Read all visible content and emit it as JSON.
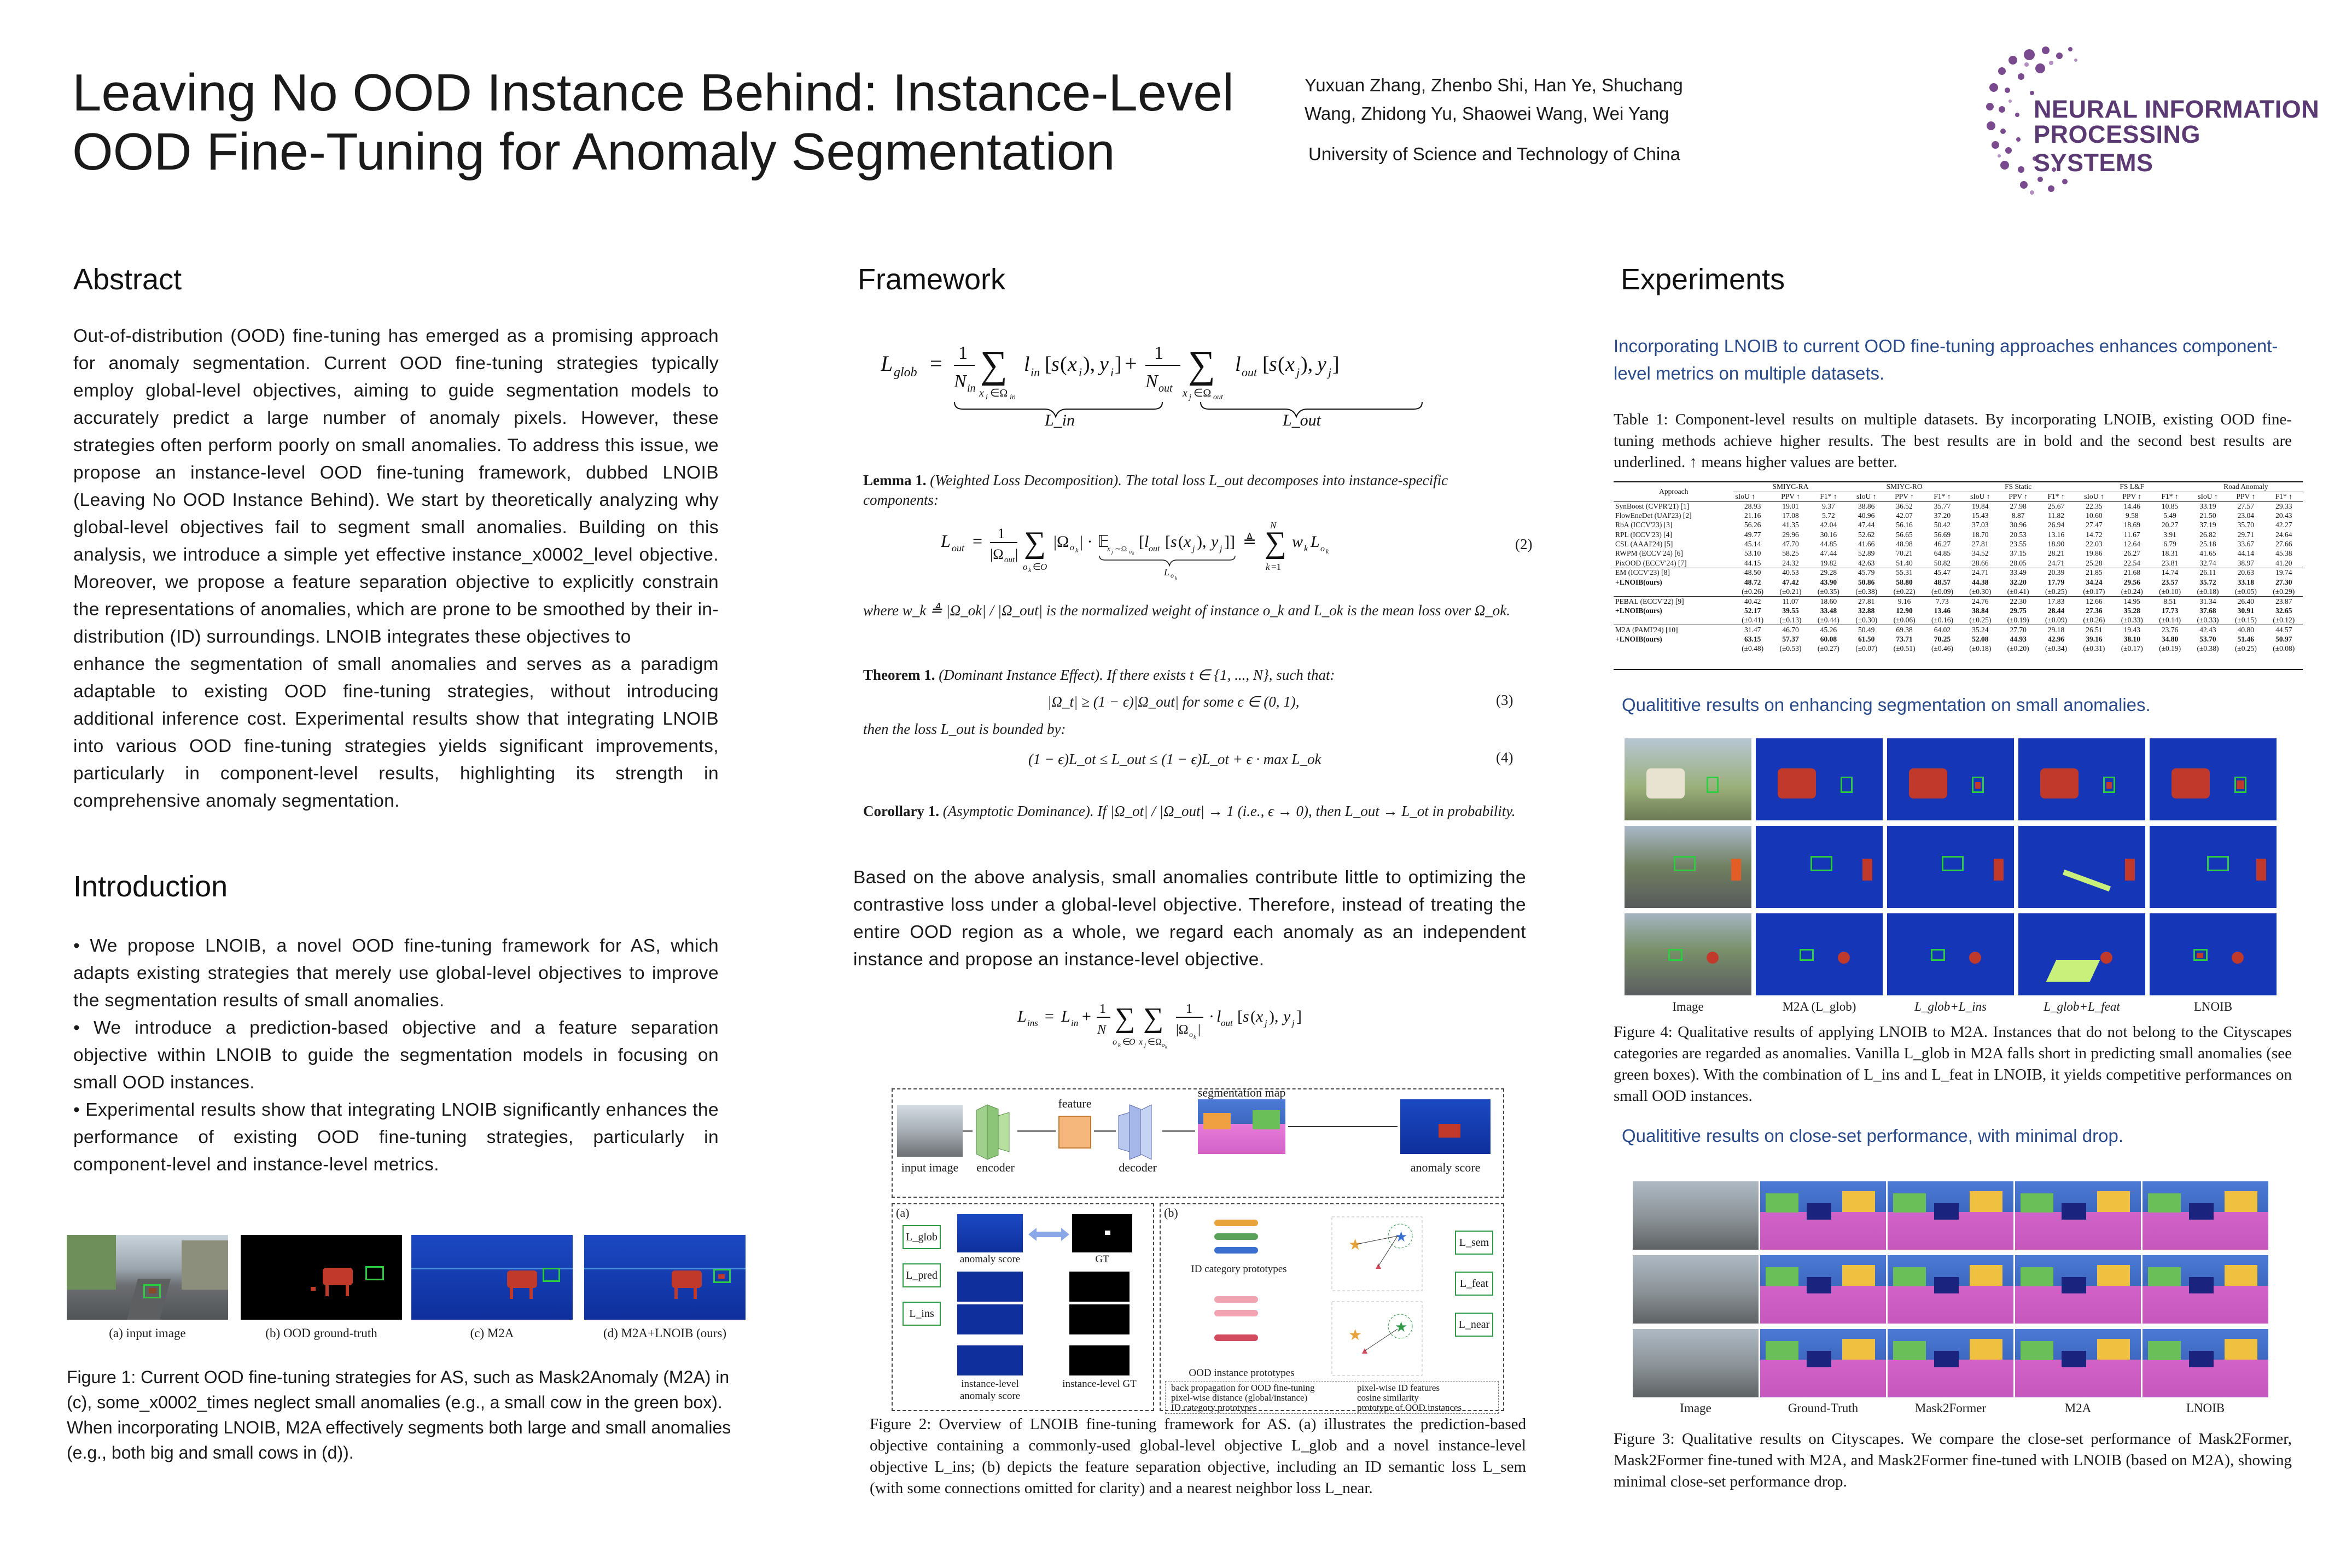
{
  "header": {
    "title_line1": "Leaving No OOD Instance Behind: Instance-Level",
    "title_line2": "OOD Fine-Tuning for Anomaly Segmentation",
    "authors_line1": "Yuxuan Zhang, Zhenbo Shi, Han Ye, Shuchang",
    "authors_line2": "Wang, Zhidong Yu, Shaowei Wang, Wei Yang",
    "affiliation": "University of Science and Technology of China",
    "logo_line1": "NEURAL INFORMATION",
    "logo_line2": "PROCESSING SYSTEMS"
  },
  "abstract": {
    "heading": "Abstract",
    "text1": "Out-of-distribution (OOD) fine-tuning has emerged as a promising approach for anomaly segmentation. Current OOD fine-tuning strategies typically employ global-level objectives, aiming to guide segmentation models to accurately predict a large number of anomaly pixels. However, these strategies often perform poorly on small anomalies. To address this issue, we propose an instance-level OOD fine-tuning framework, dubbed LNOIB (Leaving No OOD Instance Behind). We start by theoretically analyzing why global-level objectives fail to segment small anomalies. Building on this analysis, we introduce a simple yet effective instance_x0002_level objective. Moreover, we propose a feature separation objective to explicitly constrain the representations of anomalies, which are prone to be smoothed by their in-distribution (ID) surroundings. LNOIB integrates these objectives to",
    "text2": "enhance the segmentation of small anomalies and serves as a paradigm adaptable to existing OOD fine-tuning strategies, without introducing additional inference cost. Experimental results show that integrating LNOIB into various OOD fine-tuning strategies yields significant improvements, particularly in component-level results, highlighting its strength in comprehensive anomaly segmentation."
  },
  "introduction": {
    "heading": "Introduction",
    "bullets": [
      "• We propose LNOIB, a novel OOD fine-tuning framework for AS, which adapts existing strategies that merely use global-level objectives to improve the segmentation results of small anomalies.",
      "• We introduce a prediction-based objective and a feature separation objective within LNOIB to guide the segmentation models in focusing on small OOD instances.",
      "• Experimental results show that integrating LNOIB significantly enhances the performance of existing OOD fine-tuning strategies, particularly in component-level and instance-level metrics."
    ]
  },
  "figure1": {
    "subcaptions": [
      "(a) input image",
      "(b) OOD ground-truth",
      "(c) M2A",
      "(d) M2A+LNOIB (ours)"
    ],
    "caption": "Figure 1: Current OOD fine-tuning strategies for AS, such as Mask2Anomaly (M2A) in (c), some_x0002_times neglect small anomalies (e.g., a small cow in the green box). When incorporating LNOIB, M2A effectively segments both large and small anomalies (e.g., both big and small cows in (d))."
  },
  "framework": {
    "heading": "Framework",
    "eq_glob_label_in": "L_in",
    "eq_glob_label_out": "L_out",
    "lemma_head": "Lemma 1.",
    "lemma_body": "(Weighted Loss Decomposition). The total loss L_out decomposes into instance-specific components:",
    "eq2_num": "(2)",
    "lemma_where": "where w_k ≜ |Ω_ok| / |Ω_out| is the normalized weight of instance o_k and L_ok is the mean loss over Ω_ok.",
    "theorem_head": "Theorem 1.",
    "theorem_body": "(Dominant Instance Effect). If there exists t ∈ {1, ..., N}, such that:",
    "eq3": "|Ω_t| ≥ (1 − ϵ)|Ω_out|   for some ϵ ∈ (0, 1),",
    "eq3_num": "(3)",
    "theorem_then": "then the loss L_out is bounded by:",
    "eq4": "(1 − ϵ)L_ot ≤ L_out ≤ (1 − ϵ)L_ot + ϵ · max L_ok",
    "eq4_num": "(4)",
    "corollary_head": "Corollary 1.",
    "corollary_body": "(Asymptotic Dominance). If |Ω_ot| / |Ω_out| → 1 (i.e., ϵ → 0), then L_out → L_ot in probability.",
    "analysis": "Based on the above analysis, small anomalies contribute little to optimizing the contrastive loss under a global-level objective. Therefore, instead of treating the entire OOD region as a whole, we regard each anomaly as an independent instance and propose an instance-level objective.",
    "diagram": {
      "input_image": "input image",
      "encoder": "encoder",
      "feature": "feature",
      "decoder": "decoder",
      "segmentation_map": "segmentation map",
      "anomaly_score": "anomaly score",
      "panel_a": "(a)",
      "panel_b": "(b)",
      "anomaly_score_small": "anomaly score",
      "gt": "GT",
      "instance_anomaly": "instance-level anomaly score",
      "instance_gt": "instance-level GT",
      "id_prototypes": "ID category prototypes",
      "ood_prototypes": "OOD instance prototypes",
      "l_glob": "L_glob",
      "l_pred": "L_pred",
      "l_ins": "L_ins",
      "l_sem": "L_sem",
      "l_feat": "L_feat",
      "l_near": "L_near",
      "legend": [
        "back propagation for OOD fine-tuning",
        "pixel-wise ID features",
        "pixel-wise distance (global/instance)",
        "cosine similarity",
        "ID category prototypes",
        "prototype of OOD instances"
      ]
    },
    "caption": "Figure 2: Overview of LNOIB fine-tuning framework for AS. (a) illustrates the prediction-based objective containing a commonly-used global-level objective L_glob and a novel instance-level objective L_ins; (b) depicts the feature separation objective, including an ID semantic loss L_sem (with some connections omitted for clarity) and a nearest neighbor loss L_near."
  },
  "experiments": {
    "heading": "Experiments",
    "intro": "Incorporating LNOIB to current OOD fine-tuning approaches enhances component-level metrics on multiple datasets.",
    "table_caption": "Table 1: Component-level results on multiple datasets. By incorporating LNOIB, existing OOD fine-tuning methods achieve higher results. The best results are in bold and the second best results are underlined. ↑ means higher values are better.",
    "table": {
      "header_groups": [
        "Approach",
        "SMIYC-RA",
        "SMIYC-RO",
        "FS Static",
        "FS L&F",
        "Road Anomaly"
      ],
      "metrics": [
        "sIoU ↑",
        "PPV ↑",
        "F1* ↑"
      ],
      "rows": [
        [
          "SynBoost (CVPR'21) [1]",
          "28.93",
          "19.01",
          "9.37",
          "38.86",
          "36.52",
          "35.77",
          "19.84",
          "27.98",
          "25.67",
          "22.35",
          "14.46",
          "10.85",
          "33.19",
          "27.57",
          "29.33"
        ],
        [
          "FlowEneDet (UAI'23) [2]",
          "21.16",
          "17.08",
          "5.72",
          "40.96",
          "42.07",
          "37.20",
          "15.43",
          "8.87",
          "11.82",
          "10.60",
          "9.58",
          "5.49",
          "21.50",
          "23.04",
          "20.43"
        ],
        [
          "RbA (ICCV'23) [3]",
          "56.26",
          "41.35",
          "42.04",
          "47.44",
          "56.16",
          "50.42",
          "37.03",
          "30.96",
          "26.94",
          "27.47",
          "18.69",
          "20.27",
          "37.19",
          "35.70",
          "42.27"
        ],
        [
          "RPL (ICCV'23) [4]",
          "49.77",
          "29.96",
          "30.16",
          "52.62",
          "56.65",
          "56.69",
          "18.70",
          "20.53",
          "13.16",
          "14.72",
          "11.67",
          "3.91",
          "26.82",
          "29.71",
          "24.64"
        ],
        [
          "CSL (AAAI'24) [5]",
          "45.14",
          "47.70",
          "44.85",
          "41.66",
          "48.98",
          "46.27",
          "27.81",
          "23.55",
          "18.90",
          "22.03",
          "12.64",
          "6.79",
          "25.18",
          "33.67",
          "27.66"
        ],
        [
          "RWPM (ECCV'24) [6]",
          "53.10",
          "58.25",
          "47.44",
          "52.89",
          "70.21",
          "64.85",
          "34.52",
          "37.15",
          "28.21",
          "19.86",
          "26.27",
          "18.31",
          "41.65",
          "44.14",
          "45.38"
        ],
        [
          "PixOOD (ECCV'24) [7]",
          "44.15",
          "24.32",
          "19.82",
          "42.63",
          "51.40",
          "50.82",
          "28.66",
          "28.05",
          "24.71",
          "25.28",
          "22.54",
          "23.81",
          "32.74",
          "38.97",
          "41.20"
        ]
      ],
      "groups": [
        {
          "base": [
            "EM (ICCV'23) [8]",
            "48.50",
            "40.53",
            "29.28",
            "45.79",
            "55.31",
            "45.47",
            "24.71",
            "33.49",
            "20.39",
            "21.85",
            "21.68",
            "14.74",
            "26.11",
            "20.63",
            "19.74"
          ],
          "ours": [
            "+LNOIB(ours)",
            "48.72",
            "47.42",
            "43.90",
            "50.86",
            "58.80",
            "48.57",
            "44.38",
            "32.20",
            "17.79",
            "34.24",
            "29.56",
            "23.57",
            "35.72",
            "33.18",
            "27.30"
          ],
          "std": [
            "",
            "(±0.26)",
            "(±0.21)",
            "(±0.35)",
            "(±0.38)",
            "(±0.22)",
            "(±0.09)",
            "(±0.30)",
            "(±0.41)",
            "(±0.25)",
            "(±0.17)",
            "(±0.24)",
            "(±0.10)",
            "(±0.18)",
            "(±0.05)",
            "(±0.29)"
          ]
        },
        {
          "base": [
            "PEBAL (ECCV'22) [9]",
            "40.42",
            "11.07",
            "18.60",
            "27.81",
            "9.16",
            "7.73",
            "24.76",
            "22.30",
            "17.83",
            "12.66",
            "14.95",
            "8.51",
            "31.34",
            "26.40",
            "23.87"
          ],
          "ours": [
            "+LNOIB(ours)",
            "52.17",
            "39.55",
            "33.48",
            "32.88",
            "12.90",
            "13.46",
            "38.84",
            "29.75",
            "28.44",
            "27.36",
            "35.28",
            "17.73",
            "37.68",
            "30.91",
            "32.65"
          ],
          "std": [
            "",
            "(±0.41)",
            "(±0.13)",
            "(±0.44)",
            "(±0.30)",
            "(±0.06)",
            "(±0.16)",
            "(±0.25)",
            "(±0.19)",
            "(±0.09)",
            "(±0.26)",
            "(±0.33)",
            "(±0.14)",
            "(±0.33)",
            "(±0.15)",
            "(±0.12)"
          ]
        },
        {
          "base": [
            "M2A (PAMI'24) [10]",
            "31.47",
            "46.70",
            "45.26",
            "50.49",
            "69.38",
            "64.02",
            "35.24",
            "27.70",
            "29.18",
            "26.51",
            "19.43",
            "23.76",
            "42.43",
            "40.80",
            "44.57"
          ],
          "ours": [
            "+LNOIB(ours)",
            "63.15",
            "57.37",
            "60.08",
            "61.50",
            "73.71",
            "70.25",
            "52.08",
            "44.93",
            "42.96",
            "39.16",
            "38.10",
            "34.80",
            "53.70",
            "51.46",
            "50.97"
          ],
          "std": [
            "",
            "(±0.48)",
            "(±0.53)",
            "(±0.27)",
            "(±0.07)",
            "(±0.51)",
            "(±0.46)",
            "(±0.18)",
            "(±0.20)",
            "(±0.34)",
            "(±0.31)",
            "(±0.17)",
            "(±0.19)",
            "(±0.38)",
            "(±0.25)",
            "(±0.08)"
          ]
        }
      ]
    },
    "qual_small_heading": "Qualititive results on enhancing segmentation on small anomalies.",
    "fig4_labels": [
      "Image",
      "M2A (L_glob)",
      "L_glob+L_ins",
      "L_glob+L_feat",
      "LNOIB"
    ],
    "fig4_caption": "Figure 4: Qualitative results of applying LNOIB to M2A. Instances that do not belong to the Cityscapes categories are regarded as anomalies. Vanilla L_glob in M2A falls short in predicting small anomalies (see green boxes). With the combination of L_ins and L_feat in LNOIB, it yields competitive performances on small OOD instances.",
    "qual_close_heading": "Qualititive results on close-set performance, with minimal drop.",
    "fig3_labels": [
      "Image",
      "Ground-Truth",
      "Mask2Former",
      "M2A",
      "LNOIB"
    ],
    "fig3_caption": "Figure 3: Qualitative results on Cityscapes. We compare the close-set performance of Mask2Former, Mask2Former fine-tuned with M2A, and Mask2Former fine-tuned with LNOIB (based on M2A), showing minimal close-set performance drop."
  },
  "colors": {
    "accent_blue": "#2a4a8a",
    "logo_purple": "#7a4a8e",
    "seg_blue": "#1636b8",
    "anomaly_red": "#c0392b",
    "box_green": "#2ecc40"
  }
}
